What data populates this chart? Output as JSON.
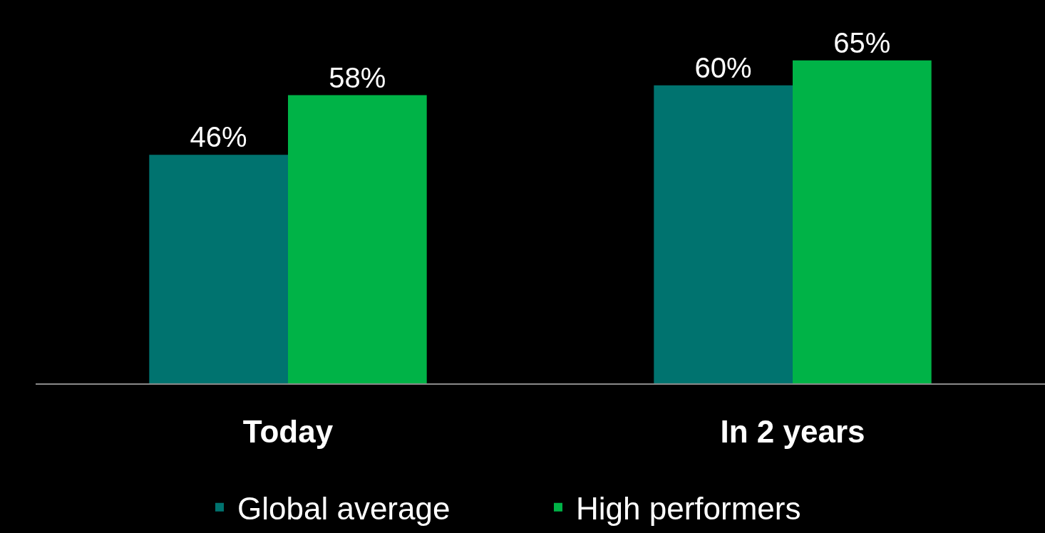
{
  "chart_data": {
    "type": "bar",
    "categories": [
      "Today",
      "In 2 years"
    ],
    "series": [
      {
        "name": "Global average",
        "color": "#00736f",
        "values": [
          46,
          60
        ],
        "value_labels": [
          "46%",
          "60%"
        ]
      },
      {
        "name": "High performers",
        "color": "#00b347",
        "values": [
          58,
          65
        ],
        "value_labels": [
          "58%",
          "65%"
        ]
      }
    ],
    "legend": "bottom"
  }
}
